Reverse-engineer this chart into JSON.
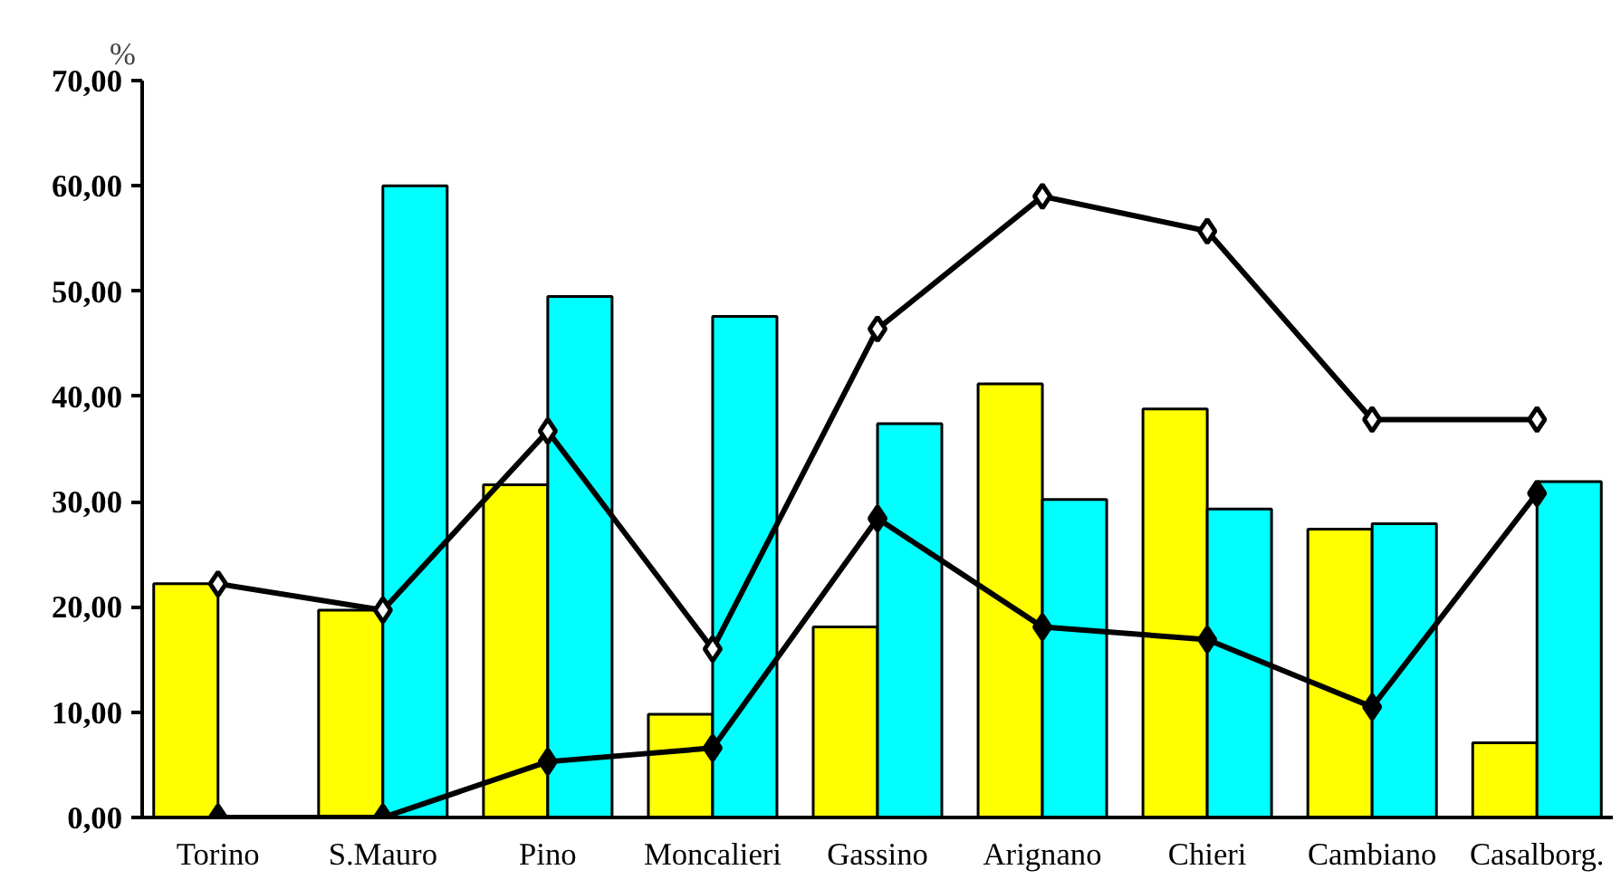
{
  "chart_data": {
    "type": "bar",
    "ylabel": "%",
    "categories": [
      "Torino",
      "S.Mauro",
      "Pino",
      "Moncalieri",
      "Gassino",
      "Arignano",
      "Chieri",
      "Cambiano",
      "Casalborg."
    ],
    "ylim": [
      0,
      70
    ],
    "yticks": [
      {
        "value": 0,
        "label": "0,00"
      },
      {
        "value": 10,
        "label": "10,00"
      },
      {
        "value": 20,
        "label": "20,00"
      },
      {
        "value": 30,
        "label": "30,00"
      },
      {
        "value": 40,
        "label": "40,00"
      },
      {
        "value": 50,
        "label": "50,00"
      },
      {
        "value": 60,
        "label": "60,00"
      },
      {
        "value": 70,
        "label": "70,00"
      }
    ],
    "grid": false,
    "marker": "diamond",
    "line_style": "solid",
    "series": [
      {
        "color": "#ffff00",
        "values": [
          22.2,
          19.7,
          31.6,
          9.8,
          18.1,
          41.2,
          38.8,
          27.4,
          7.1
        ]
      },
      {
        "color": "#00ffff",
        "values": [
          null,
          60.0,
          49.5,
          47.6,
          37.4,
          30.2,
          29.3,
          27.9,
          31.9
        ]
      },
      {
        "type": "line",
        "color": "#000000",
        "values": [
          22.2,
          19.7,
          36.7,
          16.0,
          46.4,
          59.0,
          55.7,
          37.8,
          37.8
        ]
      },
      {
        "type": "line",
        "color": "#000000",
        "values": [
          0,
          0,
          5.3,
          6.6,
          28.4,
          18.1,
          16.9,
          10.5,
          30.8
        ]
      }
    ]
  }
}
